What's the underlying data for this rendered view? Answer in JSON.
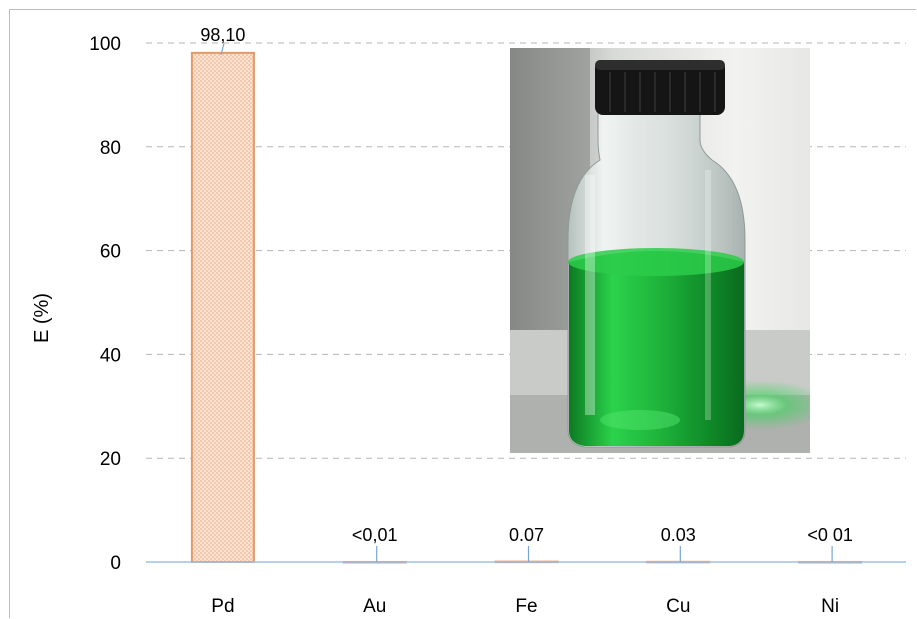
{
  "chart_data": {
    "type": "bar",
    "categories": [
      "Pd",
      "Au",
      "Fe",
      "Cu",
      "Ni"
    ],
    "values": [
      98.1,
      0.005,
      0.07,
      0.03,
      0.005
    ],
    "data_labels": [
      "98,10",
      "<0,01",
      "0.07",
      "0.03",
      "<0 01"
    ],
    "title": "",
    "xlabel": "",
    "ylabel": "E (%)",
    "ylim": [
      0,
      100
    ],
    "yticks": [
      "0",
      "20",
      "40",
      "60",
      "80",
      "100"
    ],
    "grid": true,
    "legend": "none",
    "bar_fill": "#fbe3d3",
    "bar_pattern_dot": "#e9a77a",
    "bar_edge": "#e39a66",
    "leader_line_color": "#7aa4d8",
    "baseline_color": "#9dc0ea",
    "gridline_color": "#b5b5b5"
  },
  "inset_photo": {
    "description_icon": "green-solution-bottle-photo"
  }
}
